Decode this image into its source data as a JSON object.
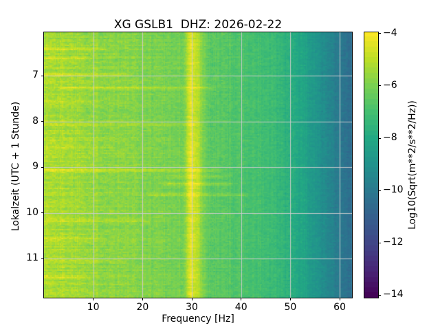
{
  "figure": {
    "background": "#ffffff"
  },
  "chart_data": {
    "type": "heatmap",
    "title": "XG GSLB1  DHZ: 2026-02-22",
    "xlabel": "Frequency [Hz]",
    "ylabel": "Lokalzeit (UTC + 1 Stunde)",
    "x_range_hz": [
      0,
      62.5
    ],
    "x_ticks": [
      10,
      20,
      30,
      40,
      50,
      60
    ],
    "x_tick_labels": [
      "10",
      "20",
      "30",
      "40",
      "50",
      "60"
    ],
    "y_range_hours": [
      6.05,
      11.85
    ],
    "y_ticks": [
      7,
      8,
      9,
      10,
      11
    ],
    "y_tick_labels": [
      "7",
      "8",
      "9",
      "10",
      "11"
    ],
    "grid": true,
    "grid_color": "rgba(206,204,206,0.95)",
    "colorbar": {
      "label": "Log10(Sqrt(m**2/s**2/Hz))",
      "ticks": [
        -4,
        -6,
        -8,
        -10,
        -12,
        -14
      ],
      "tick_labels": [
        "−4",
        "−6",
        "−8",
        "−10",
        "−12",
        "−14"
      ],
      "vmin": -14.1,
      "vmax": -3.95,
      "colormap": "viridis",
      "quant_step": 0.2,
      "stops": [
        "#440154",
        "#482475",
        "#414487",
        "#355f8d",
        "#2a788e",
        "#21918c",
        "#22a884",
        "#44bf70",
        "#7ad151",
        "#bddf26",
        "#fde725"
      ]
    },
    "spectral_profile": [
      [
        0,
        -5.2
      ],
      [
        2,
        -5.25
      ],
      [
        6,
        -5.35
      ],
      [
        9,
        -5.5
      ],
      [
        12,
        -5.65
      ],
      [
        15.3,
        -5.68
      ],
      [
        16,
        -5.75
      ],
      [
        20,
        -5.85
      ],
      [
        24,
        -5.97
      ],
      [
        27,
        -6.07
      ],
      [
        28.4,
        -6.1
      ],
      [
        28.9,
        -5.5
      ],
      [
        29.4,
        -4.6
      ],
      [
        29.9,
        -4.38
      ],
      [
        30.6,
        -4.65
      ],
      [
        31.3,
        -5.1
      ],
      [
        32.2,
        -5.8
      ],
      [
        33.2,
        -6.45
      ],
      [
        35,
        -6.55
      ],
      [
        38,
        -6.68
      ],
      [
        40,
        -6.8
      ],
      [
        44,
        -7.05
      ],
      [
        47,
        -7.3
      ],
      [
        49,
        -7.55
      ],
      [
        50,
        -7.75
      ],
      [
        52,
        -8.1
      ],
      [
        53,
        -8.3
      ],
      [
        54.5,
        -8.7
      ],
      [
        55.4,
        -8.95
      ],
      [
        55.8,
        -8.8
      ],
      [
        56.5,
        -9.1
      ],
      [
        58,
        -9.5
      ],
      [
        60,
        -10.0
      ],
      [
        61.5,
        -10.3
      ],
      [
        62.5,
        -10.55
      ]
    ],
    "spectral_line_hz": 29.9,
    "events": [
      {
        "t": 6.42,
        "f0": 0,
        "f1": 12,
        "boost": 0.65
      },
      {
        "t": 6.62,
        "f0": 0,
        "f1": 8,
        "boost": 0.5
      },
      {
        "t": 6.97,
        "f0": 0,
        "f1": 15,
        "boost": 0.75
      },
      {
        "t": 7.27,
        "f0": 4,
        "f1": 33,
        "boost": 0.7
      },
      {
        "t": 7.55,
        "f0": 0,
        "f1": 10,
        "boost": 0.4
      },
      {
        "t": 8.07,
        "f0": 0,
        "f1": 30,
        "boost": 0.55
      },
      {
        "t": 8.55,
        "f0": 0,
        "f1": 12,
        "boost": 0.45
      },
      {
        "t": 9.07,
        "f0": 0,
        "f1": 34,
        "boost": 0.8
      },
      {
        "t": 9.2,
        "f0": 26,
        "f1": 36,
        "boost": 0.6
      },
      {
        "t": 9.37,
        "f0": 25,
        "f1": 37,
        "boost": 0.85
      },
      {
        "t": 9.6,
        "f0": 22,
        "f1": 40,
        "boost": 0.65
      },
      {
        "t": 10.17,
        "f0": 0,
        "f1": 20,
        "boost": 0.5
      },
      {
        "t": 10.55,
        "f0": 0,
        "f1": 10,
        "boost": 0.45
      },
      {
        "t": 11.05,
        "f0": 0,
        "f1": 15,
        "boost": 0.55
      },
      {
        "t": 11.4,
        "f0": 0,
        "f1": 8,
        "boost": 0.5
      }
    ],
    "noise_seed": 1337,
    "noise_amp": 0.3
  }
}
